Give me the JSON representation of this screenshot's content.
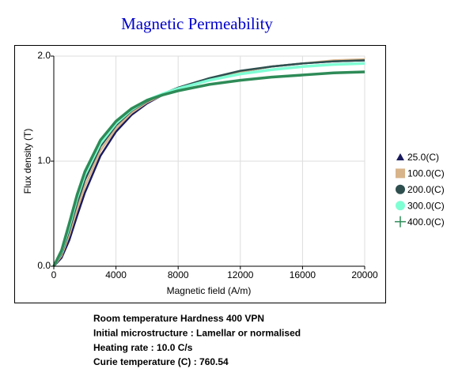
{
  "chart_data": {
    "type": "line",
    "title": "Magnetic Permeability",
    "xlabel": "Magnetic field (A/m)",
    "ylabel": "Flux density (T)",
    "x": [
      0,
      500,
      1000,
      1500,
      2000,
      3000,
      4000,
      5000,
      6000,
      7000,
      8000,
      10000,
      12000,
      14000,
      16000,
      18000,
      20000
    ],
    "series": [
      {
        "name": "25.0(C)",
        "color": "#1a1a5e",
        "marker": "triangle",
        "values": [
          0,
          0.08,
          0.25,
          0.48,
          0.7,
          1.05,
          1.28,
          1.44,
          1.55,
          1.63,
          1.69,
          1.78,
          1.85,
          1.9,
          1.93,
          1.95,
          1.96
        ]
      },
      {
        "name": "100.0(C)",
        "color": "#d8b48a",
        "marker": "square",
        "values": [
          0,
          0.1,
          0.3,
          0.54,
          0.76,
          1.1,
          1.31,
          1.46,
          1.56,
          1.63,
          1.69,
          1.78,
          1.85,
          1.9,
          1.93,
          1.96,
          1.97
        ]
      },
      {
        "name": "200.0(C)",
        "color": "#2f4f4f",
        "marker": "circle",
        "values": [
          0,
          0.12,
          0.34,
          0.6,
          0.82,
          1.14,
          1.34,
          1.48,
          1.57,
          1.64,
          1.7,
          1.79,
          1.86,
          1.9,
          1.93,
          1.95,
          1.96
        ]
      },
      {
        "name": "300.0(C)",
        "color": "#7fffd4",
        "marker": "circle",
        "values": [
          0,
          0.14,
          0.38,
          0.65,
          0.87,
          1.17,
          1.36,
          1.49,
          1.58,
          1.64,
          1.69,
          1.77,
          1.83,
          1.87,
          1.9,
          1.92,
          1.93
        ]
      },
      {
        "name": "400.0(C)",
        "color": "#2e8b57",
        "marker": "plus",
        "values": [
          0,
          0.15,
          0.41,
          0.68,
          0.9,
          1.2,
          1.38,
          1.5,
          1.58,
          1.63,
          1.67,
          1.73,
          1.77,
          1.8,
          1.82,
          1.84,
          1.85
        ]
      }
    ],
    "xlim": [
      0,
      20000
    ],
    "xticks": [
      0,
      4000,
      8000,
      12000,
      16000,
      20000
    ],
    "ylim": [
      0,
      2
    ],
    "yticks": [
      {
        "value": 0,
        "label": "0.0"
      },
      {
        "value": 1,
        "label": "1.0"
      },
      {
        "value": 2,
        "label": "2.0"
      }
    ],
    "grid": true,
    "legend": "right",
    "annotations": [
      "Room temperature Hardness 400 VPN",
      "Initial microstructure : Lamellar or normalised",
      "Heating rate : 10.0 C/s",
      "Curie temperature (C) : 760.54"
    ]
  }
}
